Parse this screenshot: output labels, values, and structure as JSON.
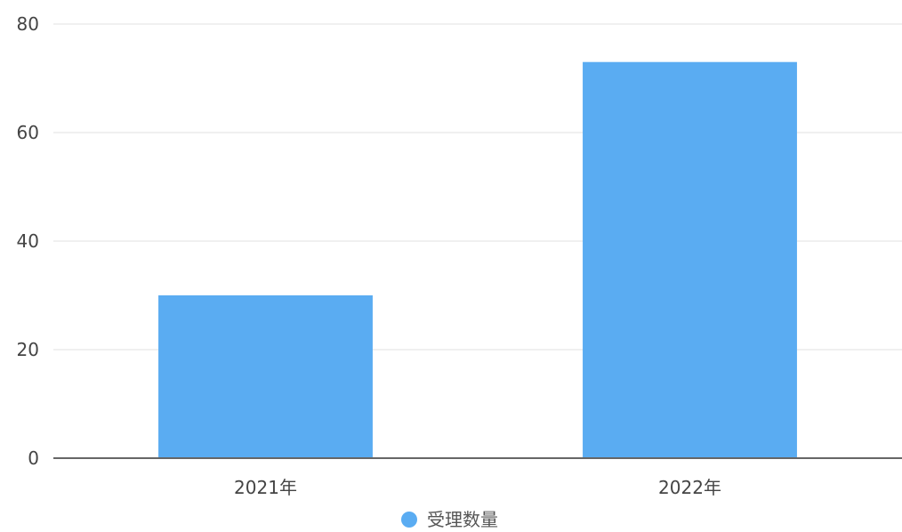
{
  "chart_data": {
    "type": "bar",
    "categories": [
      "2021年",
      "2022年"
    ],
    "series": [
      {
        "name": "受理数量",
        "values": [
          30,
          73
        ],
        "color": "#5aacf2"
      }
    ],
    "yticks": [
      0,
      20,
      40,
      60,
      80
    ],
    "ylim": [
      0,
      80
    ],
    "grid": true,
    "legend_position": "bottom-center",
    "gridline_color": "#e0e0e0",
    "axis_color": "#666666"
  }
}
